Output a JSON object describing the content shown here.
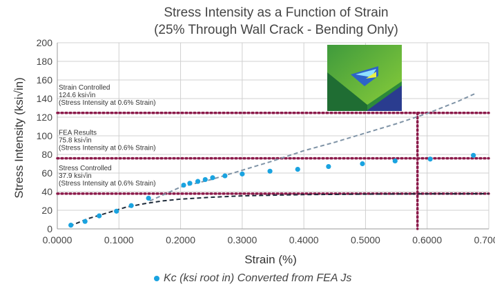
{
  "chart_data": {
    "type": "scatter",
    "title": "Stress Intensity as a Function of Strain",
    "subtitle": "(25% Through Wall Crack - Bending Only)",
    "xlabel": "Strain (%)",
    "ylabel": "Stress Intensity (ksi√in)",
    "xlim": [
      0,
      0.7
    ],
    "ylim": [
      0,
      200
    ],
    "x_ticks": [
      "0.0000",
      "0.1000",
      "0.2000",
      "0.3000",
      "0.4000",
      "0.5000",
      "0.6000",
      "0.7000"
    ],
    "y_ticks": [
      "0",
      "20",
      "40",
      "60",
      "80",
      "100",
      "120",
      "140",
      "160",
      "180",
      "200"
    ],
    "grid": true,
    "series": [
      {
        "name": "Kc (ksi root in) Converted from FEA Js",
        "color": "#1aa3e0",
        "x": [
          0.022,
          0.045,
          0.068,
          0.096,
          0.12,
          0.148,
          0.205,
          0.215,
          0.228,
          0.24,
          0.252,
          0.272,
          0.3,
          0.345,
          0.39,
          0.44,
          0.495,
          0.548,
          0.605,
          0.675
        ],
        "y": [
          4,
          8,
          14,
          19,
          25,
          33,
          47,
          49,
          51,
          53,
          55,
          57,
          59,
          62,
          64,
          67,
          70,
          73,
          75,
          79
        ]
      }
    ],
    "reference_lines": [
      {
        "y": 124.6,
        "color": "#8b1a4a",
        "style": "dotted"
      },
      {
        "y": 75.8,
        "color": "#8b1a4a",
        "style": "dotted"
      },
      {
        "y": 37.9,
        "color": "#8b1a4a",
        "style": "dotted"
      },
      {
        "x": 0.6,
        "color": "#8b1a4a",
        "style": "dotted"
      }
    ],
    "trend_lines": [
      {
        "color": "#7f93a6",
        "style": "dashed",
        "x": [
          0.15,
          0.2,
          0.25,
          0.3,
          0.35,
          0.4,
          0.45,
          0.5,
          0.55,
          0.6,
          0.65,
          0.68
        ],
        "y": [
          30,
          45,
          53,
          63,
          73,
          84,
          93,
          103,
          113,
          124,
          137,
          146
        ]
      },
      {
        "color": "#1f2b3a",
        "style": "dashed",
        "x": [
          0.02,
          0.05,
          0.08,
          0.11,
          0.14,
          0.17,
          0.2,
          0.25,
          0.3,
          0.35,
          0.4,
          0.5,
          0.6,
          0.7
        ],
        "y": [
          3,
          11,
          17,
          23,
          27,
          30,
          32,
          34,
          35.5,
          36.2,
          36.8,
          37.3,
          37.6,
          37.8
        ]
      }
    ],
    "annotations": [
      {
        "lines": [
          "Strain Controlled",
          "124.6 ksi√in",
          "(Stress Intensity at 0.6% Strain)"
        ]
      },
      {
        "lines": [
          "FEA Results",
          "75.8 ksi√in",
          "(Stress Intensity at 0.6% Strain)"
        ]
      },
      {
        "lines": [
          "Stress Controlled",
          "37.9 ksi√in",
          "(Stress Intensity at 0.6% Strain)"
        ]
      }
    ],
    "legend": {
      "label": "Kc (ksi root in) Converted from FEA Js",
      "position": "bottom"
    }
  }
}
